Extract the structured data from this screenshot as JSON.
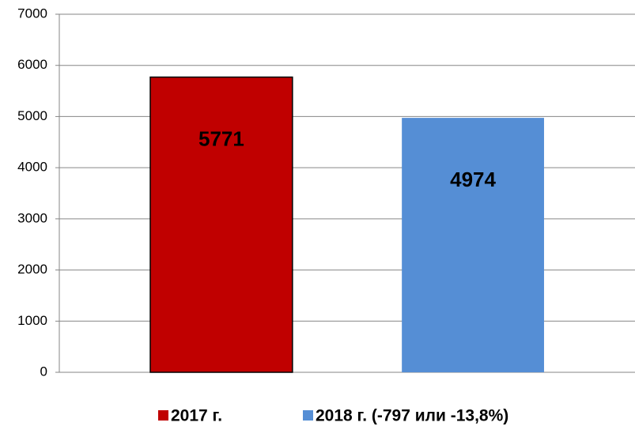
{
  "chart_data": {
    "type": "bar",
    "categories": [
      null
    ],
    "series": [
      {
        "name": "2017 г.",
        "color": "#c00000",
        "values": [
          5771
        ]
      },
      {
        "name": "2018 г. (-797 или -13,8%)",
        "color": "#558ed5",
        "values": [
          4974
        ]
      }
    ],
    "ylim": [
      0,
      7000
    ],
    "yticks": [
      0,
      1000,
      2000,
      3000,
      4000,
      5000,
      6000,
      7000
    ],
    "grid": true,
    "legend": "bottom"
  }
}
